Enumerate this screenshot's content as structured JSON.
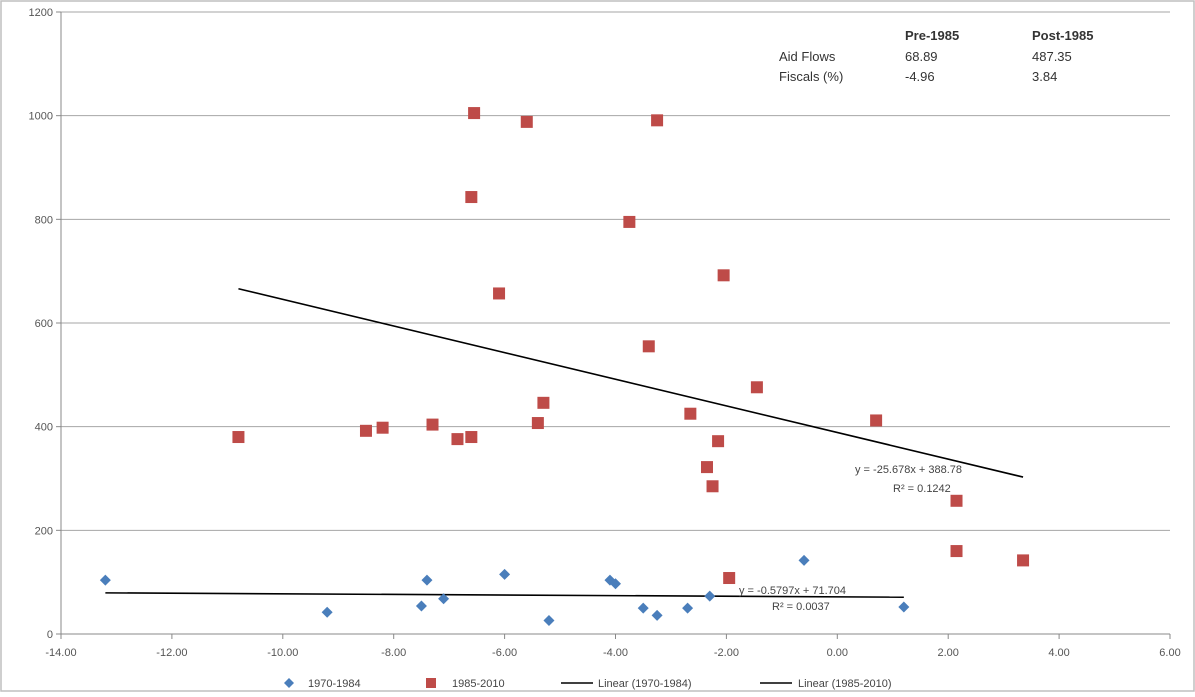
{
  "chart_data": {
    "type": "scatter",
    "title": "",
    "xlabel": "",
    "ylabel": "",
    "xlim": [
      -14,
      6
    ],
    "ylim": [
      0,
      1200
    ],
    "x_ticks": [
      "-14.00",
      "-12.00",
      "-10.00",
      "-8.00",
      "-6.00",
      "-4.00",
      "-2.00",
      "0.00",
      "2.00",
      "4.00",
      "6.00"
    ],
    "y_ticks": [
      "0",
      "200",
      "400",
      "600",
      "800",
      "1000",
      "1200"
    ],
    "grid": "horizontal",
    "legend_position": "bottom",
    "series": [
      {
        "name": "1970-1984",
        "marker": "diamond",
        "color": "#4a7ebb",
        "points": [
          [
            -13.2,
            104
          ],
          [
            -9.2,
            42
          ],
          [
            -7.5,
            54
          ],
          [
            -7.4,
            104
          ],
          [
            -7.1,
            68
          ],
          [
            -6.0,
            115
          ],
          [
            -5.2,
            26
          ],
          [
            -4.1,
            104
          ],
          [
            -4.0,
            97
          ],
          [
            -3.5,
            50
          ],
          [
            -3.25,
            36
          ],
          [
            -2.7,
            50
          ],
          [
            -2.3,
            73
          ],
          [
            -0.6,
            142
          ],
          [
            1.2,
            52
          ]
        ]
      },
      {
        "name": "1985-2010",
        "marker": "square",
        "color": "#be4b48",
        "points": [
          [
            -10.8,
            380
          ],
          [
            -8.5,
            392
          ],
          [
            -8.2,
            398
          ],
          [
            -7.3,
            404
          ],
          [
            -6.85,
            376
          ],
          [
            -6.6,
            380
          ],
          [
            -6.6,
            843
          ],
          [
            -6.55,
            1005
          ],
          [
            -6.1,
            657
          ],
          [
            -5.6,
            988
          ],
          [
            -5.4,
            407
          ],
          [
            -5.3,
            446
          ],
          [
            -3.75,
            795
          ],
          [
            -3.4,
            555
          ],
          [
            -3.25,
            991
          ],
          [
            -2.65,
            425
          ],
          [
            -2.35,
            322
          ],
          [
            -2.25,
            285
          ],
          [
            -2.15,
            372
          ],
          [
            -2.05,
            692
          ],
          [
            -1.95,
            108
          ],
          [
            -1.45,
            476
          ],
          [
            0.7,
            412
          ],
          [
            2.15,
            257
          ],
          [
            2.15,
            160
          ],
          [
            3.35,
            142
          ]
        ]
      }
    ],
    "trendlines": [
      {
        "name": "Linear (1970-1984)",
        "slope": -0.5797,
        "intercept": 71.704,
        "x_range": [
          -13.2,
          1.2
        ],
        "equation": "y = -0.5797x + 71.704",
        "r2": "R² = 0.0037"
      },
      {
        "name": "Linear (1985-2010)",
        "slope": -25.678,
        "intercept": 388.78,
        "x_range": [
          -10.8,
          3.35
        ],
        "equation": "y = -25.678x + 388.78",
        "r2": "R² = 0.1242"
      }
    ],
    "legend": [
      "1970-1984",
      "1985-2010",
      "Linear (1970-1984)",
      "Linear (1985-2010)"
    ],
    "annotation_table": {
      "columns": [
        "Pre-1985",
        "Post-1985"
      ],
      "rows": [
        {
          "label": "Aid Flows",
          "values": [
            "68.89",
            "487.35"
          ]
        },
        {
          "label": "Fiscals (%)",
          "values": [
            "-4.96",
            "3.84"
          ]
        }
      ]
    }
  }
}
